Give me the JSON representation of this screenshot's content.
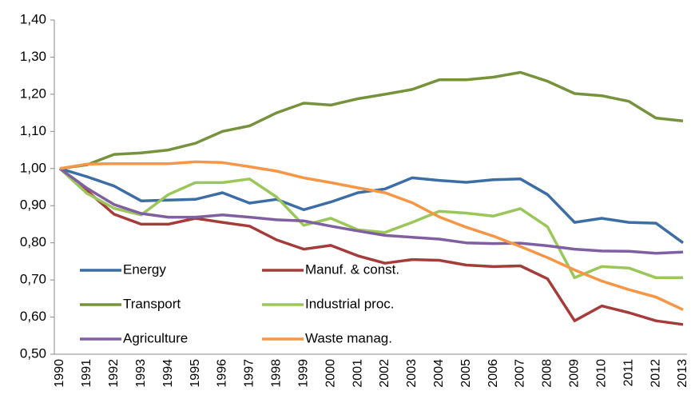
{
  "chart_data": {
    "type": "line",
    "categories": [
      "1990",
      "1991",
      "1992",
      "1993",
      "1994",
      "1995",
      "1996",
      "1997",
      "1998",
      "1999",
      "2000",
      "2001",
      "2002",
      "2003",
      "2004",
      "2005",
      "2006",
      "2007",
      "2008",
      "2009",
      "2010",
      "2011",
      "2012",
      "2013"
    ],
    "ylim": [
      0.5,
      1.4
    ],
    "yticks": [
      {
        "value": 0.5,
        "label": "0,50"
      },
      {
        "value": 0.6,
        "label": "0,60"
      },
      {
        "value": 0.7,
        "label": "0,70"
      },
      {
        "value": 0.8,
        "label": "0,80"
      },
      {
        "value": 0.9,
        "label": "0,90"
      },
      {
        "value": 1.0,
        "label": "1,00"
      },
      {
        "value": 1.1,
        "label": "1,10"
      },
      {
        "value": 1.2,
        "label": "1,20"
      },
      {
        "value": 1.3,
        "label": "1,30"
      },
      {
        "value": 1.4,
        "label": "1,40"
      }
    ],
    "grid": false,
    "legend": "lower-left",
    "series": [
      {
        "name": "Energy",
        "color": "#3c6ea5",
        "values": [
          1.0,
          0.978,
          0.953,
          0.913,
          0.915,
          0.917,
          0.935,
          0.907,
          0.917,
          0.889,
          0.91,
          0.935,
          0.945,
          0.975,
          0.968,
          0.963,
          0.97,
          0.972,
          0.93,
          0.855,
          0.866,
          0.855,
          0.853,
          0.8
        ]
      },
      {
        "name": "Manuf. & const.",
        "color": "#a63c3a",
        "values": [
          1.0,
          0.94,
          0.877,
          0.85,
          0.85,
          0.866,
          0.855,
          0.845,
          0.808,
          0.783,
          0.793,
          0.765,
          0.745,
          0.755,
          0.753,
          0.74,
          0.736,
          0.738,
          0.703,
          0.59,
          0.63,
          0.612,
          0.59,
          0.58
        ]
      },
      {
        "name": "Transport",
        "color": "#76923c",
        "values": [
          1.0,
          1.01,
          1.038,
          1.042,
          1.05,
          1.068,
          1.1,
          1.115,
          1.15,
          1.176,
          1.171,
          1.188,
          1.2,
          1.213,
          1.239,
          1.239,
          1.246,
          1.259,
          1.235,
          1.202,
          1.196,
          1.181,
          1.136,
          1.128
        ]
      },
      {
        "name": "Industrial proc.",
        "color": "#9bc75a",
        "values": [
          1.0,
          0.933,
          0.893,
          0.875,
          0.93,
          0.962,
          0.962,
          0.972,
          0.923,
          0.847,
          0.866,
          0.835,
          0.828,
          0.855,
          0.885,
          0.88,
          0.872,
          0.892,
          0.843,
          0.706,
          0.736,
          0.732,
          0.706,
          0.706
        ]
      },
      {
        "name": "Agriculture",
        "color": "#7f5fa0",
        "values": [
          1.0,
          0.947,
          0.903,
          0.879,
          0.869,
          0.869,
          0.875,
          0.869,
          0.862,
          0.859,
          0.845,
          0.832,
          0.82,
          0.815,
          0.81,
          0.8,
          0.798,
          0.799,
          0.792,
          0.783,
          0.778,
          0.777,
          0.772,
          0.775
        ]
      },
      {
        "name": "Waste manag.",
        "color": "#f79646",
        "values": [
          1.0,
          1.012,
          1.013,
          1.013,
          1.013,
          1.018,
          1.016,
          1.005,
          0.993,
          0.975,
          0.962,
          0.948,
          0.935,
          0.908,
          0.87,
          0.842,
          0.818,
          0.79,
          0.76,
          0.727,
          0.697,
          0.674,
          0.654,
          0.62
        ]
      }
    ]
  }
}
